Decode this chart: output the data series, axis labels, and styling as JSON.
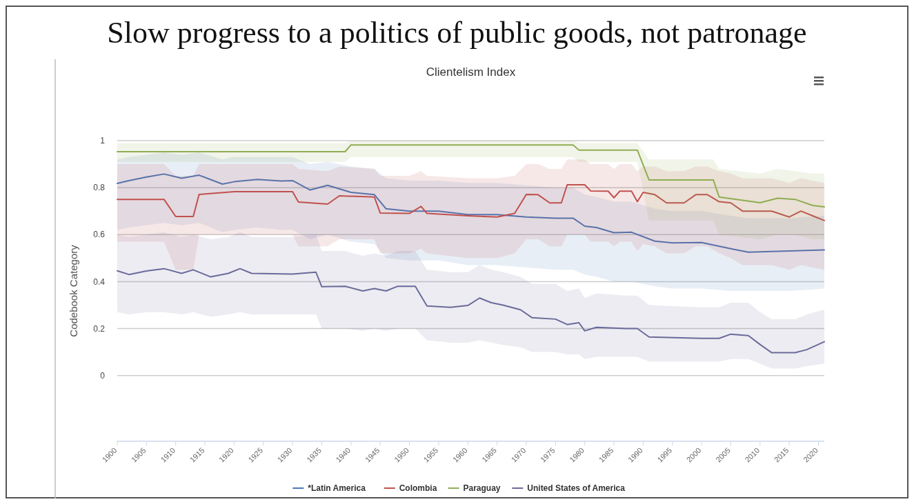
{
  "chart_data": {
    "type": "line",
    "title": "Slow progress to a politics of public goods, not patronage",
    "subtitle": "Clientelism Index",
    "ylabel": "Codebook Category",
    "xlim": [
      1900,
      2021
    ],
    "xticks": [
      1900,
      1905,
      1910,
      1915,
      1920,
      1925,
      1930,
      1935,
      1940,
      1945,
      1950,
      1955,
      1960,
      1965,
      1970,
      1975,
      1980,
      1985,
      1990,
      1995,
      2000,
      2005,
      2010,
      2015,
      2020
    ],
    "ylim": [
      -0.28,
      1
    ],
    "yticks": [
      0,
      0.2,
      0.4,
      0.6,
      0.8,
      1
    ],
    "grid": "y",
    "legend": "bottom",
    "marker": "none",
    "line_style": "solid",
    "series": [
      {
        "name": "*Latin America",
        "color": "#4a78b8",
        "x": [
          1900,
          1902,
          1905,
          1908,
          1911,
          1914,
          1918,
          1920,
          1924,
          1928,
          1930,
          1933,
          1936,
          1940,
          1944,
          1946,
          1950,
          1955,
          1960,
          1965,
          1970,
          1975,
          1978,
          1980,
          1982,
          1985,
          1988,
          1992,
          1995,
          2000,
          2005,
          2008,
          2015,
          2021
        ],
        "values": [
          0.818,
          0.83,
          0.845,
          0.858,
          0.84,
          0.853,
          0.815,
          0.825,
          0.835,
          0.828,
          0.83,
          0.79,
          0.81,
          0.78,
          0.77,
          0.71,
          0.7,
          0.7,
          0.685,
          0.685,
          0.675,
          0.67,
          0.67,
          0.636,
          0.63,
          0.608,
          0.61,
          0.572,
          0.565,
          0.566,
          0.54,
          0.525,
          0.53,
          0.535
        ],
        "lower": [
          0.62,
          0.63,
          0.64,
          0.65,
          0.64,
          0.65,
          0.61,
          0.62,
          0.63,
          0.62,
          0.62,
          0.58,
          0.6,
          0.57,
          0.56,
          0.5,
          0.49,
          0.49,
          0.47,
          0.47,
          0.46,
          0.45,
          0.45,
          0.43,
          0.42,
          0.4,
          0.4,
          0.38,
          0.37,
          0.37,
          0.36,
          0.36,
          0.36,
          0.37
        ],
        "upper": [
          0.92,
          0.93,
          0.94,
          0.95,
          0.94,
          0.95,
          0.92,
          0.93,
          0.93,
          0.93,
          0.93,
          0.9,
          0.91,
          0.89,
          0.88,
          0.84,
          0.83,
          0.83,
          0.82,
          0.82,
          0.81,
          0.8,
          0.8,
          0.77,
          0.76,
          0.74,
          0.74,
          0.71,
          0.7,
          0.7,
          0.68,
          0.67,
          0.67,
          0.68
        ]
      },
      {
        "name": "Colombia",
        "color": "#c0504d",
        "x": [
          1900,
          1908,
          1910,
          1913,
          1914,
          1920,
          1930,
          1931,
          1936,
          1938,
          1944,
          1945,
          1950,
          1952,
          1953,
          1960,
          1965,
          1968,
          1970,
          1972,
          1974,
          1976,
          1977,
          1980,
          1981,
          1984,
          1985,
          1986,
          1988,
          1989,
          1990,
          1992,
          1994,
          1997,
          1999,
          2001,
          2003,
          2005,
          2007,
          2012,
          2015,
          2017,
          2019,
          2021
        ],
        "values": [
          0.75,
          0.75,
          0.677,
          0.677,
          0.771,
          0.783,
          0.783,
          0.739,
          0.73,
          0.765,
          0.76,
          0.692,
          0.69,
          0.72,
          0.69,
          0.68,
          0.675,
          0.69,
          0.771,
          0.77,
          0.735,
          0.735,
          0.812,
          0.812,
          0.786,
          0.785,
          0.757,
          0.785,
          0.785,
          0.74,
          0.78,
          0.77,
          0.735,
          0.735,
          0.77,
          0.77,
          0.74,
          0.735,
          0.7,
          0.7,
          0.675,
          0.7,
          0.68,
          0.66
        ],
        "lower": [
          0.57,
          0.57,
          0.45,
          0.45,
          0.6,
          0.6,
          0.6,
          0.55,
          0.55,
          0.58,
          0.58,
          0.52,
          0.52,
          0.54,
          0.52,
          0.5,
          0.5,
          0.52,
          0.58,
          0.58,
          0.55,
          0.55,
          0.6,
          0.6,
          0.57,
          0.57,
          0.55,
          0.57,
          0.57,
          0.53,
          0.56,
          0.55,
          0.52,
          0.52,
          0.55,
          0.55,
          0.52,
          0.5,
          0.47,
          0.47,
          0.45,
          0.47,
          0.46,
          0.45
        ],
        "upper": [
          0.9,
          0.9,
          0.85,
          0.85,
          0.9,
          0.9,
          0.9,
          0.88,
          0.87,
          0.89,
          0.88,
          0.85,
          0.85,
          0.87,
          0.85,
          0.84,
          0.84,
          0.85,
          0.9,
          0.9,
          0.88,
          0.88,
          0.92,
          0.92,
          0.9,
          0.9,
          0.88,
          0.9,
          0.9,
          0.87,
          0.89,
          0.89,
          0.87,
          0.87,
          0.89,
          0.89,
          0.87,
          0.86,
          0.84,
          0.84,
          0.82,
          0.84,
          0.83,
          0.82
        ]
      },
      {
        "name": "Paraguay",
        "color": "#8fad52",
        "x": [
          1900,
          1939,
          1940,
          1978,
          1979,
          1989,
          1991,
          2002,
          2003,
          2010,
          2013,
          2016,
          2019,
          2021
        ],
        "values": [
          0.953,
          0.953,
          0.982,
          0.982,
          0.96,
          0.96,
          0.833,
          0.833,
          0.76,
          0.736,
          0.755,
          0.75,
          0.724,
          0.718
        ],
        "lower": [
          0.91,
          0.91,
          0.93,
          0.93,
          0.91,
          0.91,
          0.66,
          0.66,
          0.6,
          0.58,
          0.6,
          0.6,
          0.58,
          0.58
        ],
        "upper": [
          0.99,
          0.99,
          1.0,
          1.0,
          0.99,
          0.99,
          0.92,
          0.92,
          0.88,
          0.86,
          0.88,
          0.87,
          0.86,
          0.86
        ]
      },
      {
        "name": "United States of America",
        "color": "#6a6a9a",
        "x": [
          1900,
          1902,
          1905,
          1908,
          1911,
          1913,
          1916,
          1919,
          1921,
          1923,
          1930,
          1934,
          1935,
          1939,
          1942,
          1944,
          1946,
          1948,
          1951,
          1953,
          1957,
          1960,
          1962,
          1964,
          1966,
          1969,
          1971,
          1975,
          1977,
          1979,
          1980,
          1982,
          1987,
          1989,
          1991,
          2000,
          2003,
          2005,
          2008,
          2010,
          2012,
          2016,
          2018,
          2021
        ],
        "values": [
          0.446,
          0.43,
          0.445,
          0.455,
          0.435,
          0.45,
          0.42,
          0.435,
          0.455,
          0.435,
          0.432,
          0.44,
          0.378,
          0.38,
          0.36,
          0.37,
          0.36,
          0.38,
          0.38,
          0.296,
          0.29,
          0.298,
          0.33,
          0.31,
          0.3,
          0.28,
          0.246,
          0.24,
          0.217,
          0.225,
          0.19,
          0.205,
          0.2,
          0.2,
          0.164,
          0.158,
          0.158,
          0.176,
          0.17,
          0.132,
          0.097,
          0.097,
          0.11,
          0.144
        ],
        "lower": [
          0.27,
          0.26,
          0.27,
          0.27,
          0.26,
          0.27,
          0.25,
          0.26,
          0.27,
          0.26,
          0.26,
          0.26,
          0.2,
          0.2,
          0.19,
          0.2,
          0.19,
          0.2,
          0.2,
          0.15,
          0.14,
          0.14,
          0.15,
          0.14,
          0.13,
          0.12,
          0.1,
          0.1,
          0.09,
          0.09,
          0.07,
          0.08,
          0.08,
          0.08,
          0.06,
          0.06,
          0.06,
          0.07,
          0.07,
          0.05,
          0.03,
          0.03,
          0.04,
          0.05
        ],
        "upper": [
          0.6,
          0.59,
          0.6,
          0.61,
          0.59,
          0.6,
          0.58,
          0.59,
          0.61,
          0.59,
          0.59,
          0.6,
          0.53,
          0.53,
          0.51,
          0.52,
          0.51,
          0.53,
          0.53,
          0.45,
          0.44,
          0.44,
          0.47,
          0.45,
          0.44,
          0.42,
          0.39,
          0.39,
          0.36,
          0.37,
          0.33,
          0.35,
          0.34,
          0.34,
          0.3,
          0.29,
          0.29,
          0.31,
          0.31,
          0.27,
          0.24,
          0.24,
          0.26,
          0.28
        ]
      }
    ]
  }
}
